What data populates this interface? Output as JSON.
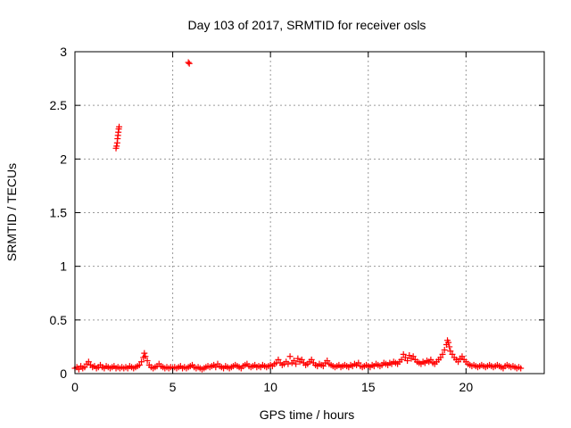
{
  "chart_data": {
    "type": "scatter",
    "title": "Day 103 of 2017, SRMTID for receiver osls",
    "xlabel": "GPS time / hours",
    "ylabel": "SRMTID / TECUs",
    "xlim": [
      0,
      24
    ],
    "ylim": [
      0,
      3
    ],
    "xticks": [
      0,
      5,
      10,
      15,
      20
    ],
    "yticks": [
      0,
      0.5,
      1,
      1.5,
      2,
      2.5,
      3
    ],
    "xtick_labels": [
      "0",
      "5",
      "10",
      "15",
      "20"
    ],
    "ytick_labels": [
      "0",
      "0.5",
      "1",
      "1.5",
      "2",
      "2.5",
      "3"
    ],
    "grid": true,
    "marker": "+",
    "color": "#ff0000",
    "series": [
      {
        "name": "SRMTID",
        "points": [
          [
            0.0,
            0.05
          ],
          [
            0.1,
            0.06
          ],
          [
            0.2,
            0.04
          ],
          [
            0.3,
            0.07
          ],
          [
            0.4,
            0.05
          ],
          [
            0.5,
            0.06
          ],
          [
            0.6,
            0.09
          ],
          [
            0.7,
            0.11
          ],
          [
            0.8,
            0.08
          ],
          [
            0.9,
            0.06
          ],
          [
            1.0,
            0.07
          ],
          [
            1.1,
            0.05
          ],
          [
            1.2,
            0.06
          ],
          [
            1.3,
            0.08
          ],
          [
            1.4,
            0.06
          ],
          [
            1.5,
            0.05
          ],
          [
            1.6,
            0.07
          ],
          [
            1.7,
            0.06
          ],
          [
            1.8,
            0.05
          ],
          [
            1.9,
            0.06
          ],
          [
            2.0,
            0.07
          ],
          [
            2.1,
            0.05
          ],
          [
            2.2,
            0.06
          ],
          [
            2.3,
            0.05
          ],
          [
            2.4,
            0.06
          ],
          [
            2.5,
            0.05
          ],
          [
            2.6,
            0.06
          ],
          [
            2.7,
            0.05
          ],
          [
            2.8,
            0.07
          ],
          [
            2.9,
            0.06
          ],
          [
            3.0,
            0.05
          ],
          [
            3.1,
            0.06
          ],
          [
            3.2,
            0.07
          ],
          [
            3.3,
            0.08
          ],
          [
            3.4,
            0.11
          ],
          [
            3.5,
            0.15
          ],
          [
            3.55,
            0.19
          ],
          [
            3.6,
            0.16
          ],
          [
            3.7,
            0.12
          ],
          [
            3.8,
            0.08
          ],
          [
            3.9,
            0.06
          ],
          [
            4.0,
            0.05
          ],
          [
            4.1,
            0.06
          ],
          [
            4.2,
            0.07
          ],
          [
            4.3,
            0.09
          ],
          [
            4.4,
            0.07
          ],
          [
            4.5,
            0.06
          ],
          [
            4.6,
            0.05
          ],
          [
            4.7,
            0.06
          ],
          [
            4.8,
            0.05
          ],
          [
            4.9,
            0.06
          ],
          [
            5.0,
            0.05
          ],
          [
            5.1,
            0.06
          ],
          [
            5.2,
            0.05
          ],
          [
            5.3,
            0.06
          ],
          [
            5.4,
            0.07
          ],
          [
            5.5,
            0.05
          ],
          [
            5.6,
            0.06
          ],
          [
            5.7,
            0.05
          ],
          [
            5.8,
            0.06
          ],
          [
            5.9,
            0.07
          ],
          [
            6.0,
            0.08
          ],
          [
            6.1,
            0.06
          ],
          [
            6.2,
            0.05
          ],
          [
            6.3,
            0.06
          ],
          [
            6.4,
            0.05
          ],
          [
            6.5,
            0.04
          ],
          [
            6.6,
            0.05
          ],
          [
            6.7,
            0.06
          ],
          [
            6.8,
            0.07
          ],
          [
            6.9,
            0.06
          ],
          [
            7.0,
            0.07
          ],
          [
            7.1,
            0.08
          ],
          [
            7.2,
            0.06
          ],
          [
            7.3,
            0.09
          ],
          [
            7.4,
            0.07
          ],
          [
            7.5,
            0.06
          ],
          [
            7.6,
            0.05
          ],
          [
            7.7,
            0.07
          ],
          [
            7.8,
            0.06
          ],
          [
            7.9,
            0.05
          ],
          [
            8.0,
            0.06
          ],
          [
            8.1,
            0.07
          ],
          [
            8.2,
            0.08
          ],
          [
            8.3,
            0.07
          ],
          [
            8.4,
            0.06
          ],
          [
            8.5,
            0.05
          ],
          [
            8.6,
            0.07
          ],
          [
            8.7,
            0.08
          ],
          [
            8.8,
            0.09
          ],
          [
            8.9,
            0.07
          ],
          [
            9.0,
            0.06
          ],
          [
            9.1,
            0.07
          ],
          [
            9.2,
            0.08
          ],
          [
            9.3,
            0.06
          ],
          [
            9.4,
            0.07
          ],
          [
            9.5,
            0.06
          ],
          [
            9.6,
            0.08
          ],
          [
            9.7,
            0.07
          ],
          [
            9.8,
            0.06
          ],
          [
            9.9,
            0.07
          ],
          [
            10.0,
            0.08
          ],
          [
            10.1,
            0.07
          ],
          [
            10.2,
            0.09
          ],
          [
            10.3,
            0.1
          ],
          [
            10.4,
            0.13
          ],
          [
            10.5,
            0.1
          ],
          [
            10.6,
            0.08
          ],
          [
            10.7,
            0.09
          ],
          [
            10.8,
            0.11
          ],
          [
            10.9,
            0.09
          ],
          [
            11.0,
            0.16
          ],
          [
            11.1,
            0.1
          ],
          [
            11.2,
            0.12
          ],
          [
            11.3,
            0.09
          ],
          [
            11.4,
            0.14
          ],
          [
            11.5,
            0.11
          ],
          [
            11.6,
            0.13
          ],
          [
            11.7,
            0.1
          ],
          [
            11.8,
            0.08
          ],
          [
            11.9,
            0.09
          ],
          [
            12.0,
            0.11
          ],
          [
            12.1,
            0.13
          ],
          [
            12.2,
            0.1
          ],
          [
            12.3,
            0.08
          ],
          [
            12.4,
            0.07
          ],
          [
            12.5,
            0.09
          ],
          [
            12.6,
            0.08
          ],
          [
            12.7,
            0.07
          ],
          [
            12.8,
            0.1
          ],
          [
            12.9,
            0.12
          ],
          [
            13.0,
            0.09
          ],
          [
            13.1,
            0.08
          ],
          [
            13.2,
            0.07
          ],
          [
            13.3,
            0.06
          ],
          [
            13.4,
            0.07
          ],
          [
            13.5,
            0.08
          ],
          [
            13.6,
            0.06
          ],
          [
            13.7,
            0.07
          ],
          [
            13.8,
            0.08
          ],
          [
            13.9,
            0.07
          ],
          [
            14.0,
            0.06
          ],
          [
            14.1,
            0.08
          ],
          [
            14.2,
            0.07
          ],
          [
            14.3,
            0.09
          ],
          [
            14.4,
            0.08
          ],
          [
            14.5,
            0.1
          ],
          [
            14.6,
            0.07
          ],
          [
            14.7,
            0.06
          ],
          [
            14.8,
            0.07
          ],
          [
            14.9,
            0.08
          ],
          [
            15.0,
            0.07
          ],
          [
            15.1,
            0.06
          ],
          [
            15.2,
            0.08
          ],
          [
            15.3,
            0.07
          ],
          [
            15.4,
            0.09
          ],
          [
            15.5,
            0.08
          ],
          [
            15.6,
            0.07
          ],
          [
            15.7,
            0.08
          ],
          [
            15.8,
            0.1
          ],
          [
            15.9,
            0.09
          ],
          [
            16.0,
            0.08
          ],
          [
            16.1,
            0.1
          ],
          [
            16.2,
            0.09
          ],
          [
            16.3,
            0.11
          ],
          [
            16.4,
            0.1
          ],
          [
            16.5,
            0.09
          ],
          [
            16.6,
            0.11
          ],
          [
            16.7,
            0.13
          ],
          [
            16.8,
            0.18
          ],
          [
            16.9,
            0.15
          ],
          [
            17.0,
            0.12
          ],
          [
            17.1,
            0.17
          ],
          [
            17.2,
            0.14
          ],
          [
            17.3,
            0.16
          ],
          [
            17.4,
            0.13
          ],
          [
            17.5,
            0.11
          ],
          [
            17.6,
            0.1
          ],
          [
            17.7,
            0.09
          ],
          [
            17.8,
            0.11
          ],
          [
            17.9,
            0.1
          ],
          [
            18.0,
            0.12
          ],
          [
            18.1,
            0.11
          ],
          [
            18.2,
            0.13
          ],
          [
            18.3,
            0.1
          ],
          [
            18.4,
            0.09
          ],
          [
            18.5,
            0.11
          ],
          [
            18.6,
            0.13
          ],
          [
            18.7,
            0.15
          ],
          [
            18.8,
            0.18
          ],
          [
            18.9,
            0.22
          ],
          [
            19.0,
            0.27
          ],
          [
            19.05,
            0.31
          ],
          [
            19.1,
            0.29
          ],
          [
            19.15,
            0.25
          ],
          [
            19.2,
            0.21
          ],
          [
            19.3,
            0.18
          ],
          [
            19.4,
            0.15
          ],
          [
            19.5,
            0.13
          ],
          [
            19.6,
            0.11
          ],
          [
            19.7,
            0.14
          ],
          [
            19.8,
            0.16
          ],
          [
            19.9,
            0.13
          ],
          [
            20.0,
            0.11
          ],
          [
            20.1,
            0.09
          ],
          [
            20.2,
            0.08
          ],
          [
            20.3,
            0.07
          ],
          [
            20.4,
            0.08
          ],
          [
            20.5,
            0.07
          ],
          [
            20.6,
            0.06
          ],
          [
            20.7,
            0.07
          ],
          [
            20.8,
            0.08
          ],
          [
            20.9,
            0.07
          ],
          [
            21.0,
            0.06
          ],
          [
            21.1,
            0.07
          ],
          [
            21.2,
            0.08
          ],
          [
            21.3,
            0.07
          ],
          [
            21.4,
            0.06
          ],
          [
            21.5,
            0.07
          ],
          [
            21.6,
            0.08
          ],
          [
            21.7,
            0.07
          ],
          [
            21.8,
            0.06
          ],
          [
            21.9,
            0.05
          ],
          [
            22.0,
            0.07
          ],
          [
            22.1,
            0.08
          ],
          [
            22.2,
            0.07
          ],
          [
            22.3,
            0.06
          ],
          [
            22.4,
            0.07
          ],
          [
            22.5,
            0.06
          ],
          [
            22.6,
            0.05
          ],
          [
            22.7,
            0.06
          ],
          [
            22.8,
            0.05
          ],
          [
            2.1,
            2.1
          ],
          [
            2.13,
            2.12
          ],
          [
            2.16,
            2.15
          ],
          [
            2.18,
            2.19
          ],
          [
            2.2,
            2.22
          ],
          [
            2.22,
            2.25
          ],
          [
            2.24,
            2.28
          ],
          [
            2.26,
            2.3
          ],
          [
            5.8,
            2.9
          ],
          [
            5.85,
            2.89
          ]
        ]
      }
    ]
  }
}
